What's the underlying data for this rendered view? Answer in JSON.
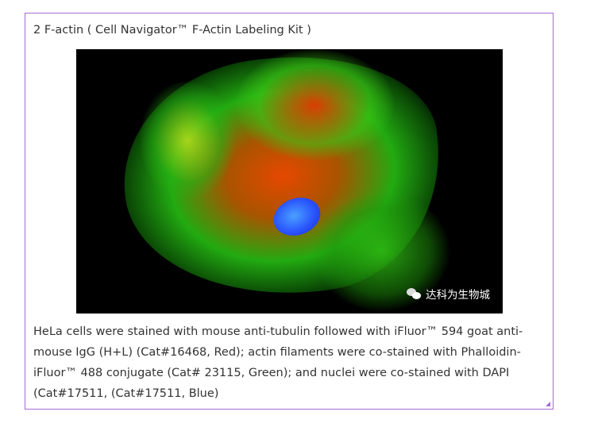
{
  "title": "2 F-actin ( Cell Navigator™ F-Actin Labeling Kit )",
  "figure": {
    "watermark": "达科为生物城",
    "watermark_icon": "wechat-icon"
  },
  "caption": {
    "lines": [
      "HeLa cells were stained with mouse anti-tubulin followed with iFluor™ 594 goat anti-",
      "mouse IgG (H+L) (Cat#16468, Red); actin filaments were co-stained with Phalloidin-",
      "iFluor™ 488 conjugate (Cat# 23115, Green); and nuclei were co-stained with DAPI",
      "(Cat#17511, (Cat#17511, Blue)"
    ]
  },
  "colors": {
    "border": "#a56bd3",
    "text": "#333333"
  }
}
